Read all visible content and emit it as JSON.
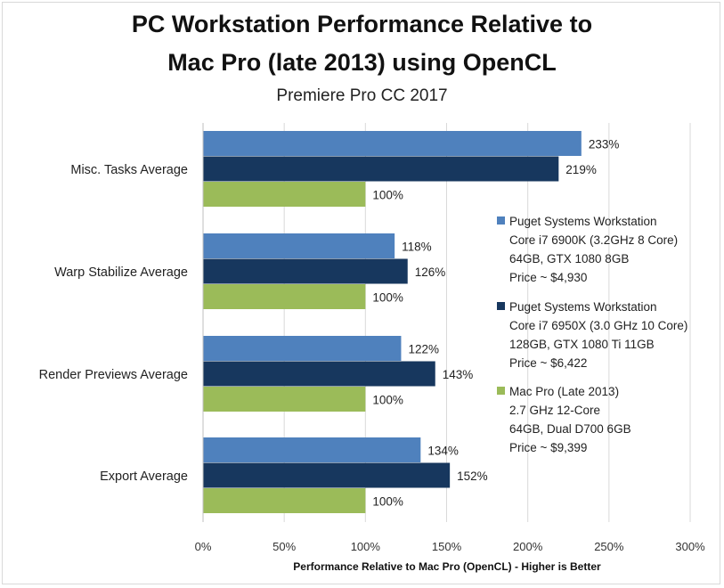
{
  "chart_data": {
    "type": "bar",
    "orientation": "horizontal",
    "title_line1": "PC Workstation Performance Relative to",
    "title_line2": "Mac Pro (late 2013) using OpenCL",
    "subtitle": "Premiere Pro CC 2017",
    "xlabel": "Performance Relative to Mac Pro (OpenCL) - Higher is Better",
    "xlim": [
      0,
      300
    ],
    "x_ticks": [
      0,
      50,
      100,
      150,
      200,
      250,
      300
    ],
    "x_tick_labels": [
      "0%",
      "50%",
      "100%",
      "150%",
      "200%",
      "250%",
      "300%"
    ],
    "grid": "vertical",
    "legend_position": "right",
    "categories": [
      "Misc. Tasks Average",
      "Warp Stabilize Average",
      "Render Previews Average",
      "Export Average"
    ],
    "series": [
      {
        "name": "Puget Systems Workstation Core i7 6900K (3.2GHz 8 Core) 64GB, GTX 1080 8GB Price ~ $4,930",
        "legend_lines": [
          "Puget Systems Workstation",
          "Core i7 6900K (3.2GHz 8 Core)",
          "64GB, GTX 1080 8GB",
          "Price ~ $4,930"
        ],
        "color": "#4f81bd",
        "values": [
          233,
          118,
          122,
          134
        ],
        "labels": [
          "233%",
          "118%",
          "122%",
          "134%"
        ]
      },
      {
        "name": "Puget Systems Workstation Core i7 6950X (3.0 GHz 10 Core) 128GB, GTX 1080 Ti 11GB Price ~ $6,422",
        "legend_lines": [
          "Puget Systems Workstation",
          "Core i7 6950X (3.0 GHz 10 Core)",
          "128GB, GTX 1080 Ti 11GB",
          "Price ~ $6,422"
        ],
        "color": "#17375e",
        "values": [
          219,
          126,
          143,
          152
        ],
        "labels": [
          "219%",
          "126%",
          "143%",
          "152%"
        ]
      },
      {
        "name": "Mac Pro (Late 2013) 2.7 GHz 12-Core 64GB, Dual D700 6GB Price ~ $9,399",
        "legend_lines": [
          "Mac Pro (Late 2013)",
          "2.7 GHz 12-Core",
          "64GB, Dual D700 6GB",
          "Price ~ $9,399"
        ],
        "color": "#9bbb59",
        "values": [
          100,
          100,
          100,
          100
        ],
        "labels": [
          "100%",
          "100%",
          "100%",
          "100%"
        ]
      }
    ]
  }
}
